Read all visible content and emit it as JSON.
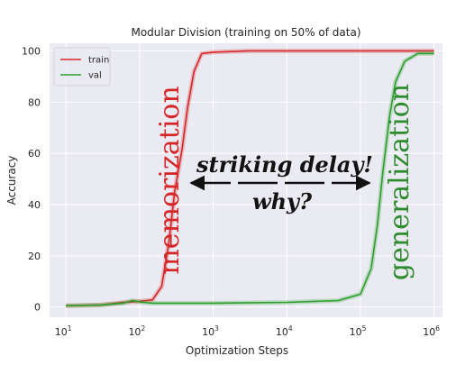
{
  "chart_data": {
    "type": "line",
    "title": "Modular Division (training on 50% of data)",
    "xlabel": "Optimization Steps",
    "ylabel": "Accuracy",
    "xscale": "log",
    "xlim": [
      6,
      1300000
    ],
    "ylim": [
      -4,
      103
    ],
    "x_ticks": [
      10,
      100,
      1000,
      10000,
      100000,
      1000000
    ],
    "x_tick_labels": [
      {
        "base": "10",
        "exp": "1"
      },
      {
        "base": "10",
        "exp": "2"
      },
      {
        "base": "10",
        "exp": "3"
      },
      {
        "base": "10",
        "exp": "4"
      },
      {
        "base": "10",
        "exp": "5"
      },
      {
        "base": "10",
        "exp": "6"
      }
    ],
    "y_ticks": [
      0,
      20,
      40,
      60,
      80,
      100
    ],
    "y_tick_labels": [
      "0",
      "20",
      "40",
      "60",
      "80",
      "100"
    ],
    "grid": true,
    "background": "#eaeaf2",
    "legend_position": "top-left",
    "series": [
      {
        "name": "train",
        "color": "#d62728",
        "points": [
          [
            10,
            0.5
          ],
          [
            30,
            0.8
          ],
          [
            60,
            1.8
          ],
          [
            100,
            2.2
          ],
          [
            150,
            2.8
          ],
          [
            200,
            8
          ],
          [
            250,
            25
          ],
          [
            300,
            45
          ],
          [
            380,
            62
          ],
          [
            450,
            78
          ],
          [
            550,
            92
          ],
          [
            700,
            99
          ],
          [
            1000,
            99.5
          ],
          [
            3000,
            100
          ],
          [
            10000,
            100
          ],
          [
            100000,
            100
          ],
          [
            1000000,
            100
          ]
        ]
      },
      {
        "name": "val",
        "color": "#2ca02c",
        "points": [
          [
            10,
            0.5
          ],
          [
            30,
            0.8
          ],
          [
            60,
            1.5
          ],
          [
            80,
            2.5
          ],
          [
            100,
            2.0
          ],
          [
            150,
            1.5
          ],
          [
            300,
            1.5
          ],
          [
            1000,
            1.5
          ],
          [
            10000,
            1.8
          ],
          [
            50000,
            2.5
          ],
          [
            100000,
            5
          ],
          [
            140000,
            15
          ],
          [
            170000,
            32
          ],
          [
            200000,
            52
          ],
          [
            250000,
            75
          ],
          [
            300000,
            88
          ],
          [
            400000,
            96
          ],
          [
            600000,
            99
          ],
          [
            1000000,
            99
          ]
        ]
      }
    ],
    "annotations": {
      "memorization": "memorization",
      "generalization": "generalization",
      "delay_line1": "striking delay!",
      "delay_line2": "why?"
    }
  }
}
